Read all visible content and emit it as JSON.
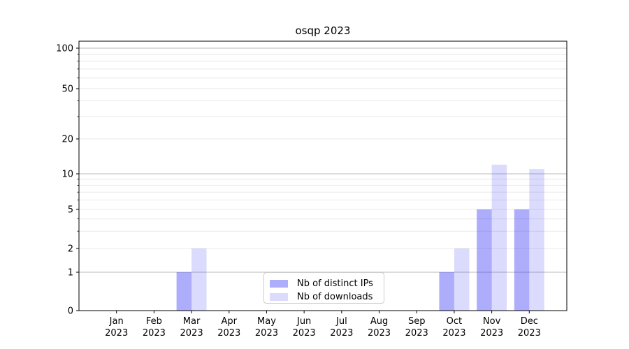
{
  "chart_data": {
    "type": "bar",
    "title": "osqp 2023",
    "x": [
      "Jan 2023",
      "Feb 2023",
      "Mar 2023",
      "Apr 2023",
      "May 2023",
      "Jun 2023",
      "Jul 2023",
      "Aug 2023",
      "Sep 2023",
      "Oct 2023",
      "Nov 2023",
      "Dec 2023"
    ],
    "x_tick_months": [
      "Jan",
      "Feb",
      "Mar",
      "Apr",
      "May",
      "Jun",
      "Jul",
      "Aug",
      "Sep",
      "Oct",
      "Nov",
      "Dec"
    ],
    "x_tick_year": "2023",
    "series": [
      {
        "name": "Nb of distinct IPs",
        "color": "rgba(40,40,245,0.38)",
        "values": [
          0,
          0,
          1,
          0,
          0,
          0,
          0,
          0,
          0,
          1,
          5,
          5
        ]
      },
      {
        "name": "Nb of downloads",
        "color": "rgba(40,40,245,0.17)",
        "values": [
          0,
          0,
          2,
          0,
          0,
          0,
          0,
          0,
          0,
          2,
          12,
          11
        ]
      }
    ],
    "yscale": "symlog",
    "ylim": [
      0,
      113
    ],
    "y_major_ticks": [
      0,
      1,
      2,
      5,
      10,
      20,
      50,
      100
    ],
    "y_major_gridlines": [
      1,
      10,
      100
    ],
    "y_minor_gridlines": [
      2,
      3,
      4,
      5,
      6,
      7,
      8,
      9,
      20,
      30,
      40,
      50,
      60,
      70,
      80,
      90
    ],
    "y_minor_tickmarks": [
      3,
      4,
      6,
      7,
      8,
      9,
      30,
      40,
      60,
      70,
      80,
      90
    ],
    "grid": true,
    "legend_position": "lower center",
    "colors": {
      "major_grid": "#b8b8b8",
      "minor_grid": "#e8e8e8",
      "spine": "#000000",
      "text": "#000000",
      "background": "#ffffff"
    }
  }
}
